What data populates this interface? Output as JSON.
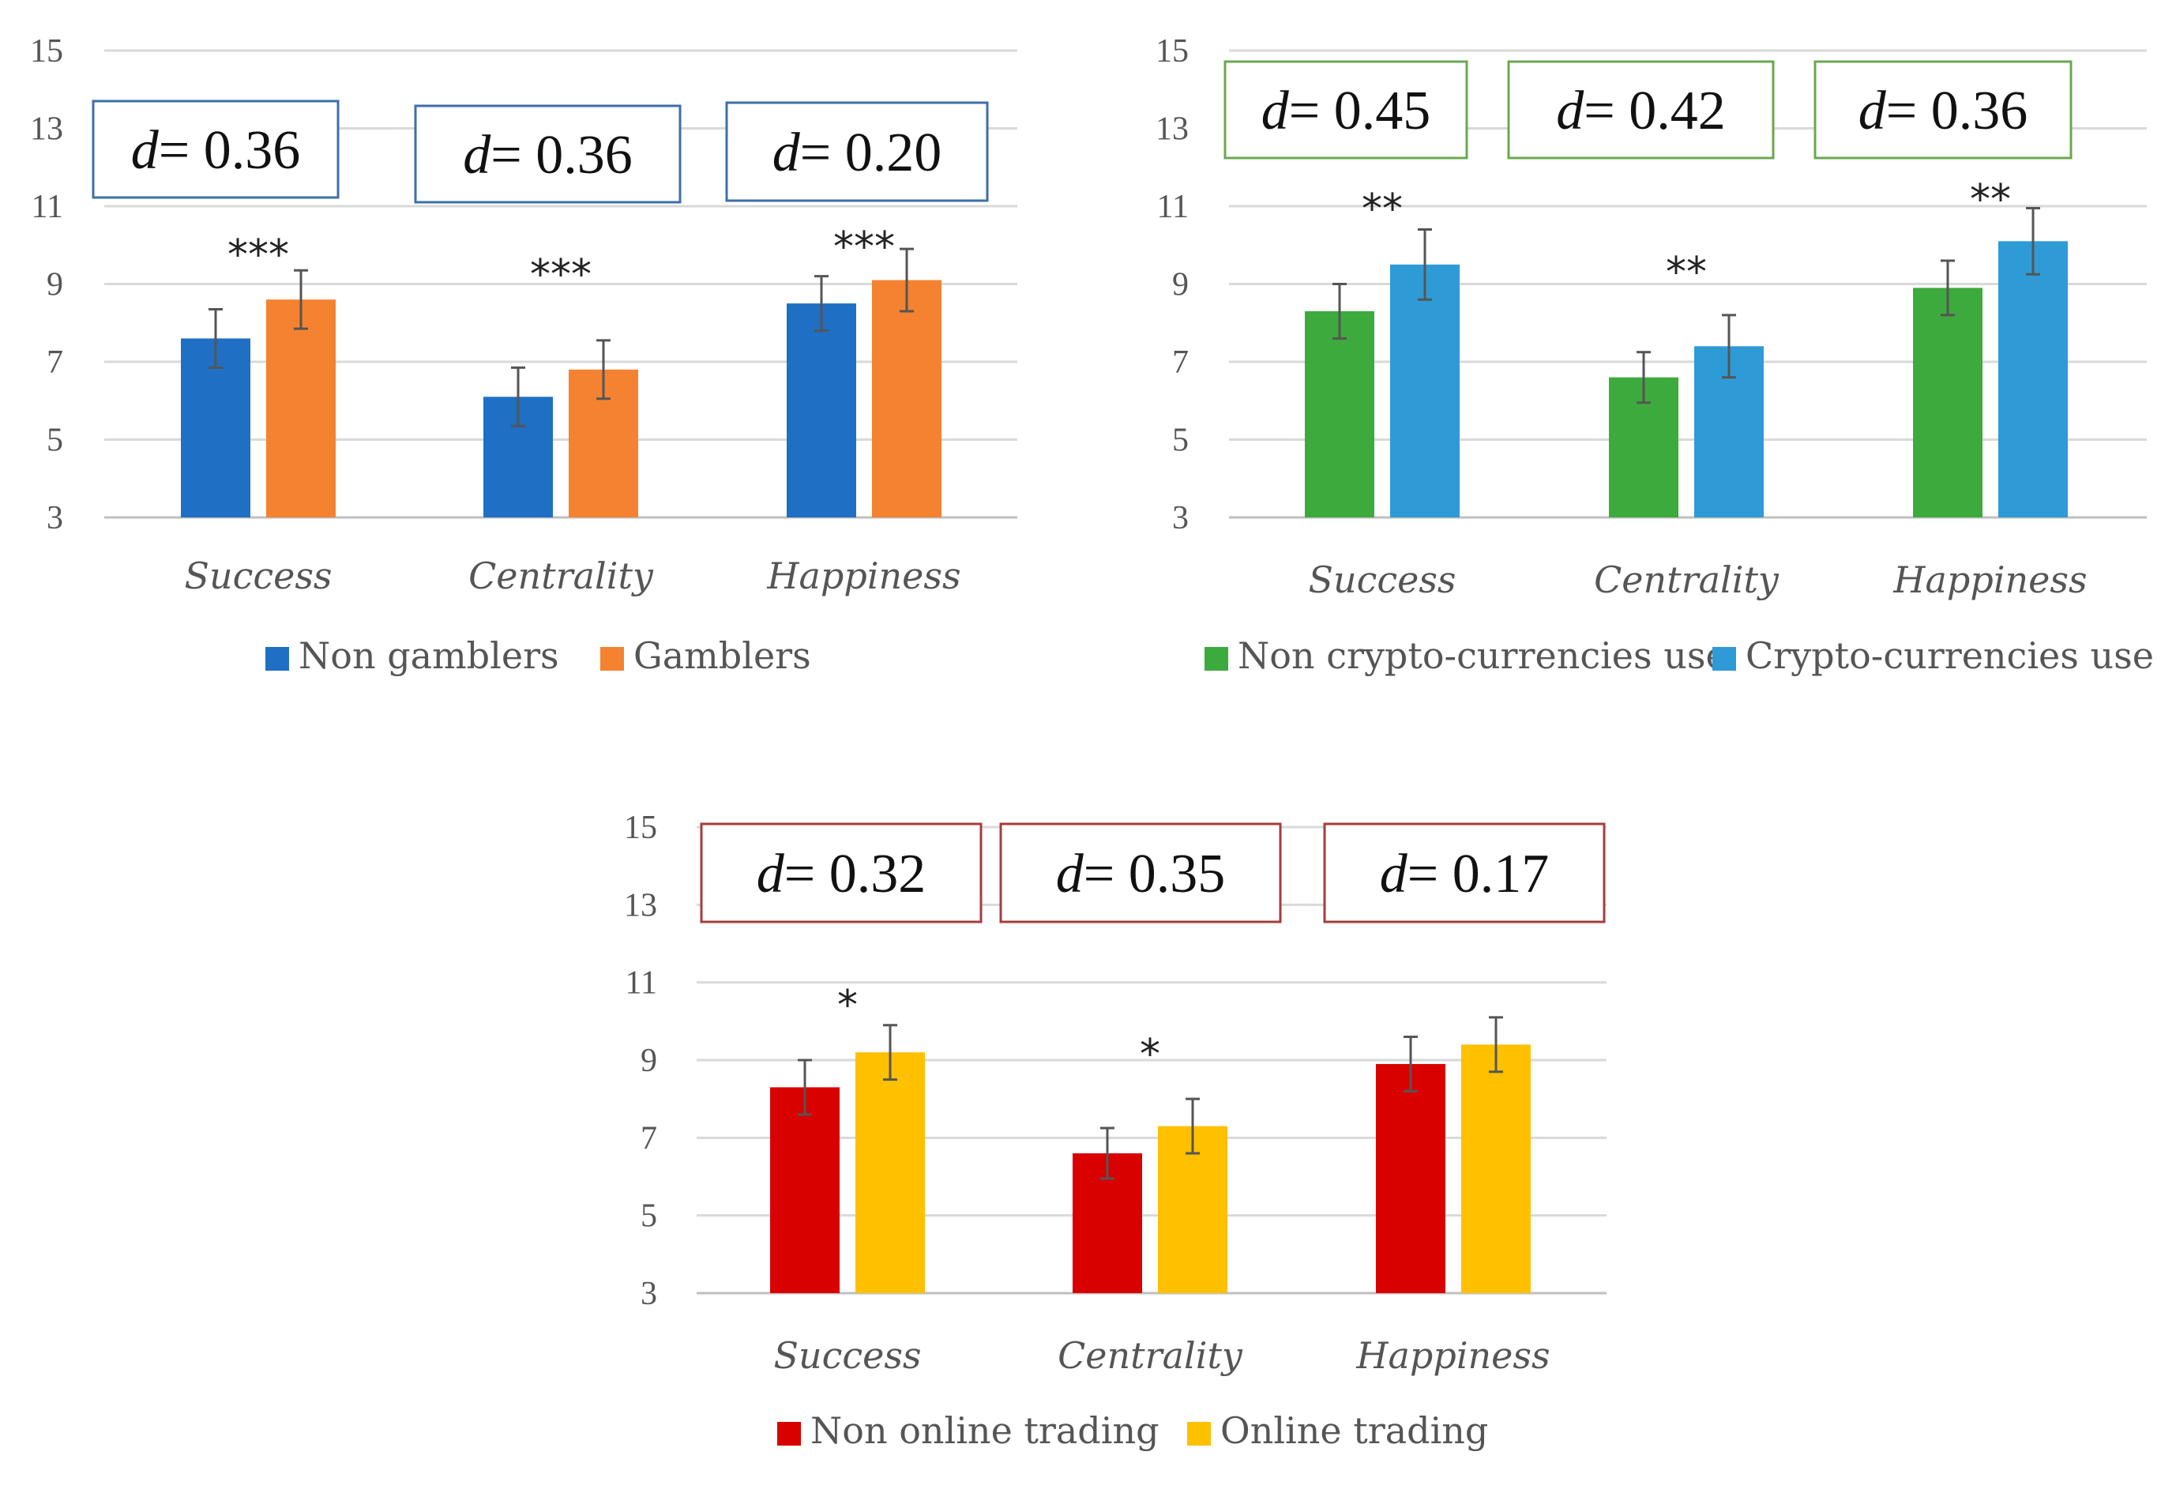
{
  "chart_data": [
    {
      "type": "bar",
      "categories": [
        "Success",
        "Centrality",
        "Happiness"
      ],
      "series": [
        {
          "name": "Non gamblers",
          "values": [
            7.6,
            6.1,
            8.5
          ],
          "errors": [
            0.75,
            0.75,
            0.7
          ],
          "color": "#1f6fc4"
        },
        {
          "name": "Gamblers",
          "values": [
            8.6,
            6.8,
            9.1
          ],
          "errors": [
            0.75,
            0.75,
            0.8
          ],
          "color": "#f58230"
        }
      ],
      "significance": [
        "***",
        "***",
        "***"
      ],
      "effect_sizes": [
        {
          "prefix": "d",
          "value": "= 0.36"
        },
        {
          "prefix": "d",
          "value": "= 0.36"
        },
        {
          "prefix": "d",
          "value": "= 0.20"
        }
      ],
      "box_color": "#3c6fa8",
      "ylim": [
        3,
        15
      ],
      "yticks": [
        "3",
        "5",
        "7",
        "9",
        "11",
        "13",
        "15"
      ],
      "legend_position": "bottom"
    },
    {
      "type": "bar",
      "categories": [
        "Success",
        "Centrality",
        "Happiness"
      ],
      "series": [
        {
          "name": "Non crypto-currencies use",
          "values": [
            8.3,
            6.6,
            8.9
          ],
          "errors": [
            0.7,
            0.65,
            0.7
          ],
          "color": "#3daa3d"
        },
        {
          "name": "Crypto-currencies use",
          "values": [
            9.5,
            7.4,
            10.1
          ],
          "errors": [
            0.9,
            0.8,
            0.85
          ],
          "color": "#2e9bd6"
        }
      ],
      "significance": [
        "**",
        "**",
        "**"
      ],
      "effect_sizes": [
        {
          "prefix": "d",
          "value": "= 0.45"
        },
        {
          "prefix": "d",
          "value": "= 0.42"
        },
        {
          "prefix": "d",
          "value": "= 0.36"
        }
      ],
      "box_color": "#6aa84f",
      "ylim": [
        3,
        15
      ],
      "yticks": [
        "3",
        "5",
        "7",
        "9",
        "11",
        "13",
        "15"
      ],
      "legend_position": "bottom"
    },
    {
      "type": "bar",
      "categories": [
        "Success",
        "Centrality",
        "Happiness"
      ],
      "series": [
        {
          "name": "Non online trading",
          "values": [
            8.3,
            6.6,
            8.9
          ],
          "errors": [
            0.7,
            0.65,
            0.7
          ],
          "color": "#d90000"
        },
        {
          "name": "Online trading",
          "values": [
            9.2,
            7.3,
            9.4
          ],
          "errors": [
            0.7,
            0.7,
            0.7
          ],
          "color": "#ffc000"
        }
      ],
      "significance": [
        "*",
        "*",
        ""
      ],
      "effect_sizes": [
        {
          "prefix": "d",
          "value": "= 0.32"
        },
        {
          "prefix": "d",
          "value": "= 0.35"
        },
        {
          "prefix": "d",
          "value": "= 0.17"
        }
      ],
      "box_color": "#a63c3c",
      "ylim": [
        3,
        15
      ],
      "yticks": [
        "3",
        "5",
        "7",
        "9",
        "11",
        "13",
        "15"
      ],
      "legend_position": "bottom"
    }
  ]
}
